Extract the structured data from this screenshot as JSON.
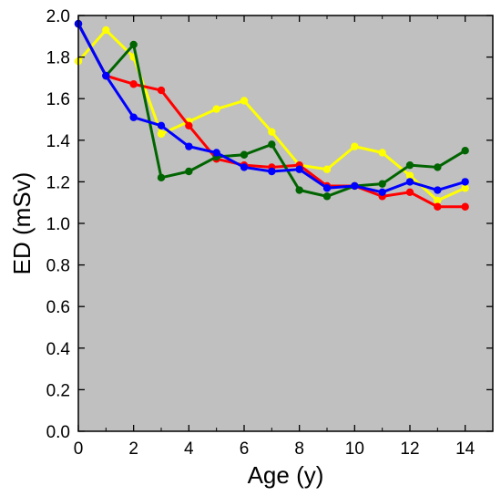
{
  "chart_data": {
    "type": "line",
    "title": "",
    "xlabel": "Age (y)",
    "ylabel": "ED (mSv)",
    "xlim": [
      0,
      15
    ],
    "ylim": [
      0.0,
      2.0
    ],
    "xticks": [
      0,
      2,
      4,
      6,
      8,
      10,
      12,
      14
    ],
    "xtick_labels": [
      "0",
      "2",
      "4",
      "6",
      "8",
      "10",
      "12",
      "14"
    ],
    "yticks": [
      0.0,
      0.2,
      0.4,
      0.6,
      0.8,
      1.0,
      1.2,
      1.4,
      1.6,
      1.8,
      2.0
    ],
    "ytick_labels": [
      "0.0",
      "0.2",
      "0.4",
      "0.6",
      "0.8",
      "1.0",
      "1.2",
      "1.4",
      "1.6",
      "1.8",
      "2.0"
    ],
    "grid": false,
    "legend": "none",
    "plot_background": "#c0c0c0",
    "x": [
      0,
      1,
      2,
      3,
      4,
      5,
      6,
      7,
      8,
      9,
      10,
      11,
      12,
      13,
      14
    ],
    "series": [
      {
        "color": "#ffff00",
        "values": [
          1.78,
          1.93,
          1.8,
          1.43,
          1.49,
          1.55,
          1.59,
          1.44,
          1.28,
          1.26,
          1.37,
          1.34,
          1.23,
          1.11,
          1.17
        ]
      },
      {
        "color": "#ff0000",
        "values": [
          1.96,
          1.71,
          1.67,
          1.64,
          1.47,
          1.31,
          1.28,
          1.27,
          1.28,
          1.18,
          1.18,
          1.13,
          1.15,
          1.08,
          1.08
        ]
      },
      {
        "color": "#006400",
        "values": [
          1.96,
          1.71,
          1.86,
          1.22,
          1.25,
          1.32,
          1.33,
          1.38,
          1.16,
          1.13,
          1.18,
          1.19,
          1.28,
          1.27,
          1.35
        ]
      },
      {
        "color": "#0000ff",
        "values": [
          1.96,
          1.71,
          1.51,
          1.47,
          1.37,
          1.34,
          1.27,
          1.25,
          1.26,
          1.17,
          1.18,
          1.15,
          1.2,
          1.16,
          1.2
        ]
      }
    ]
  }
}
